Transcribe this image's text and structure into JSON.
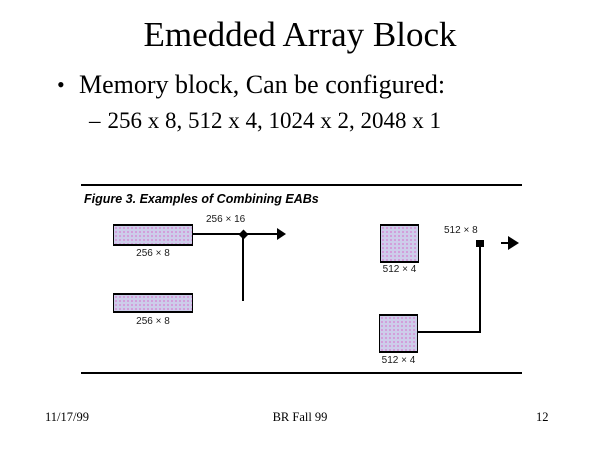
{
  "slide": {
    "title": "Emedded Array Block",
    "bullet": {
      "marker": "•",
      "text": "Memory block, Can be configured:"
    },
    "sub_bullet": {
      "marker": "–",
      "text": "256 x 8, 512 x 4, 1024 x 2, 2048 x 1"
    },
    "footer": {
      "date": "11/17/99",
      "center": "BR Fall 99",
      "page": "12"
    }
  },
  "figure": {
    "caption": "Figure 3. Examples of Combining EABs",
    "left_example": {
      "blocks": [
        {
          "label": "256 × 8"
        },
        {
          "label": "256 × 8"
        }
      ],
      "output_label": "256 × 16"
    },
    "right_example": {
      "blocks": [
        {
          "label": "512 × 4"
        },
        {
          "label": "512 × 4"
        }
      ],
      "output_label": "512 × 8"
    },
    "colors": {
      "block_fill": "#cdcdea",
      "block_dots": "#d490d4",
      "line": "#000000"
    }
  }
}
